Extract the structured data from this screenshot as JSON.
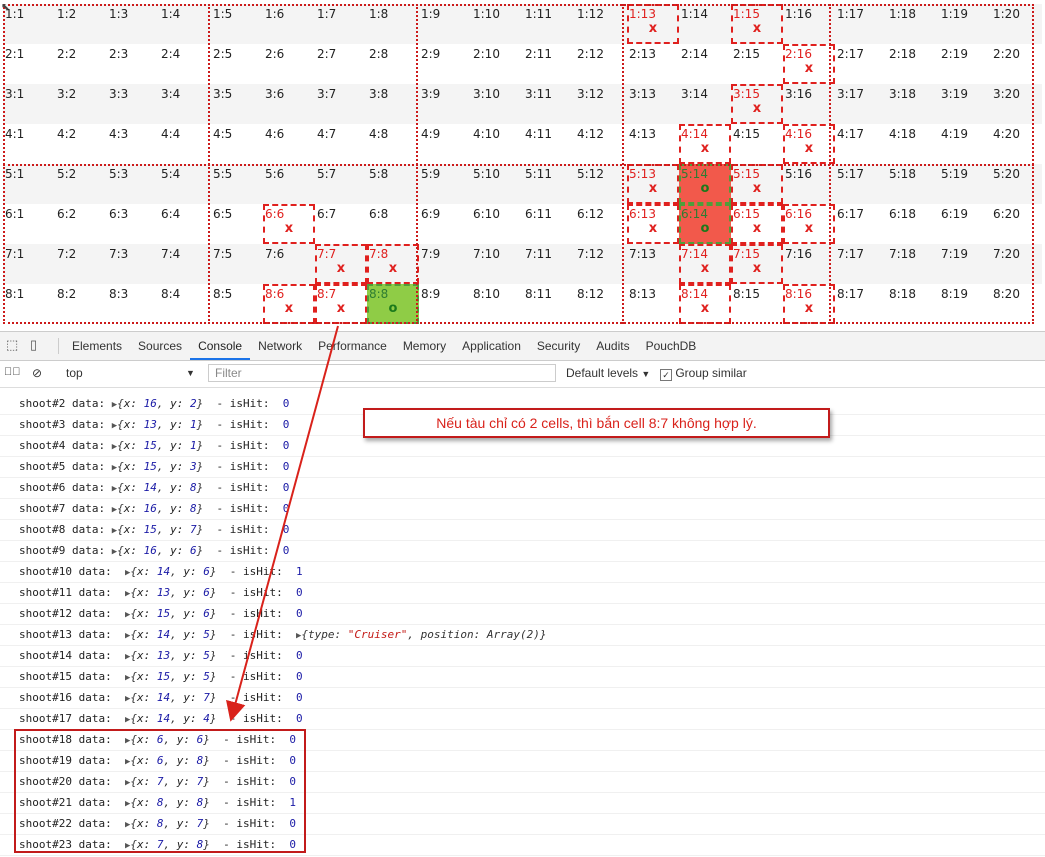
{
  "grid": {
    "rows": [
      [
        {
          "l": "1:1"
        },
        {
          "l": "1:2"
        },
        {
          "l": "1:3"
        },
        {
          "l": "1:4"
        },
        {
          "l": "1:5"
        },
        {
          "l": "1:6"
        },
        {
          "l": "1:7"
        },
        {
          "l": "1:8"
        },
        {
          "l": "1:9"
        },
        {
          "l": "1:10"
        },
        {
          "l": "1:11"
        },
        {
          "l": "1:12"
        },
        {
          "l": "1:13",
          "s": "miss",
          "m": "x"
        },
        {
          "l": "1:14"
        },
        {
          "l": "1:15",
          "s": "miss",
          "m": "x"
        },
        {
          "l": "1:16"
        },
        {
          "l": "1:17"
        },
        {
          "l": "1:18"
        },
        {
          "l": "1:19"
        },
        {
          "l": "1:20"
        }
      ],
      [
        {
          "l": "2:1"
        },
        {
          "l": "2:2"
        },
        {
          "l": "2:3"
        },
        {
          "l": "2:4"
        },
        {
          "l": "2:5"
        },
        {
          "l": "2:6"
        },
        {
          "l": "2:7"
        },
        {
          "l": "2:8"
        },
        {
          "l": "2:9"
        },
        {
          "l": "2:10"
        },
        {
          "l": "2:11"
        },
        {
          "l": "2:12"
        },
        {
          "l": "2:13"
        },
        {
          "l": "2:14"
        },
        {
          "l": "2:15"
        },
        {
          "l": "2:16",
          "s": "miss",
          "m": "x"
        },
        {
          "l": "2:17"
        },
        {
          "l": "2:18"
        },
        {
          "l": "2:19"
        },
        {
          "l": "2:20"
        }
      ],
      [
        {
          "l": "3:1"
        },
        {
          "l": "3:2"
        },
        {
          "l": "3:3"
        },
        {
          "l": "3:4"
        },
        {
          "l": "3:5"
        },
        {
          "l": "3:6"
        },
        {
          "l": "3:7"
        },
        {
          "l": "3:8"
        },
        {
          "l": "3:9"
        },
        {
          "l": "3:10"
        },
        {
          "l": "3:11"
        },
        {
          "l": "3:12"
        },
        {
          "l": "3:13"
        },
        {
          "l": "3:14"
        },
        {
          "l": "3:15",
          "s": "miss",
          "m": "x"
        },
        {
          "l": "3:16"
        },
        {
          "l": "3:17"
        },
        {
          "l": "3:18"
        },
        {
          "l": "3:19"
        },
        {
          "l": "3:20"
        }
      ],
      [
        {
          "l": "4:1"
        },
        {
          "l": "4:2"
        },
        {
          "l": "4:3"
        },
        {
          "l": "4:4"
        },
        {
          "l": "4:5"
        },
        {
          "l": "4:6"
        },
        {
          "l": "4:7"
        },
        {
          "l": "4:8"
        },
        {
          "l": "4:9"
        },
        {
          "l": "4:10"
        },
        {
          "l": "4:11"
        },
        {
          "l": "4:12"
        },
        {
          "l": "4:13"
        },
        {
          "l": "4:14",
          "s": "miss",
          "m": "x"
        },
        {
          "l": "4:15"
        },
        {
          "l": "4:16",
          "s": "miss",
          "m": "x"
        },
        {
          "l": "4:17"
        },
        {
          "l": "4:18"
        },
        {
          "l": "4:19"
        },
        {
          "l": "4:20"
        }
      ],
      [
        {
          "l": "5:1"
        },
        {
          "l": "5:2"
        },
        {
          "l": "5:3"
        },
        {
          "l": "5:4"
        },
        {
          "l": "5:5"
        },
        {
          "l": "5:6"
        },
        {
          "l": "5:7"
        },
        {
          "l": "5:8"
        },
        {
          "l": "5:9"
        },
        {
          "l": "5:10"
        },
        {
          "l": "5:11"
        },
        {
          "l": "5:12"
        },
        {
          "l": "5:13",
          "s": "miss",
          "m": "x"
        },
        {
          "l": "5:14",
          "s": "hit",
          "m": "o"
        },
        {
          "l": "5:15",
          "s": "miss",
          "m": "x"
        },
        {
          "l": "5:16"
        },
        {
          "l": "5:17"
        },
        {
          "l": "5:18"
        },
        {
          "l": "5:19"
        },
        {
          "l": "5:20"
        }
      ],
      [
        {
          "l": "6:1"
        },
        {
          "l": "6:2"
        },
        {
          "l": "6:3"
        },
        {
          "l": "6:4"
        },
        {
          "l": "6:5"
        },
        {
          "l": "6:6",
          "s": "miss",
          "m": "x"
        },
        {
          "l": "6:7"
        },
        {
          "l": "6:8"
        },
        {
          "l": "6:9"
        },
        {
          "l": "6:10"
        },
        {
          "l": "6:11"
        },
        {
          "l": "6:12"
        },
        {
          "l": "6:13",
          "s": "miss",
          "m": "x"
        },
        {
          "l": "6:14",
          "s": "hit",
          "m": "o"
        },
        {
          "l": "6:15",
          "s": "miss",
          "m": "x"
        },
        {
          "l": "6:16",
          "s": "miss",
          "m": "x"
        },
        {
          "l": "6:17"
        },
        {
          "l": "6:18"
        },
        {
          "l": "6:19"
        },
        {
          "l": "6:20"
        }
      ],
      [
        {
          "l": "7:1"
        },
        {
          "l": "7:2"
        },
        {
          "l": "7:3"
        },
        {
          "l": "7:4"
        },
        {
          "l": "7:5"
        },
        {
          "l": "7:6"
        },
        {
          "l": "7:7",
          "s": "miss",
          "m": "x"
        },
        {
          "l": "7:8",
          "s": "miss",
          "m": "x"
        },
        {
          "l": "7:9"
        },
        {
          "l": "7:10"
        },
        {
          "l": "7:11"
        },
        {
          "l": "7:12"
        },
        {
          "l": "7:13"
        },
        {
          "l": "7:14",
          "s": "miss",
          "m": "x"
        },
        {
          "l": "7:15",
          "s": "miss",
          "m": "x"
        },
        {
          "l": "7:16"
        },
        {
          "l": "7:17"
        },
        {
          "l": "7:18"
        },
        {
          "l": "7:19"
        },
        {
          "l": "7:20"
        }
      ],
      [
        {
          "l": "8:1"
        },
        {
          "l": "8:2"
        },
        {
          "l": "8:3"
        },
        {
          "l": "8:4"
        },
        {
          "l": "8:5"
        },
        {
          "l": "8:6",
          "s": "miss",
          "m": "x"
        },
        {
          "l": "8:7",
          "s": "miss",
          "m": "x"
        },
        {
          "l": "8:8",
          "s": "sunk",
          "m": "o"
        },
        {
          "l": "8:9"
        },
        {
          "l": "8:10"
        },
        {
          "l": "8:11"
        },
        {
          "l": "8:12"
        },
        {
          "l": "8:13"
        },
        {
          "l": "8:14",
          "s": "miss",
          "m": "x"
        },
        {
          "l": "8:15"
        },
        {
          "l": "8:16",
          "s": "miss",
          "m": "x"
        },
        {
          "l": "8:17"
        },
        {
          "l": "8:18"
        },
        {
          "l": "8:19"
        },
        {
          "l": "8:20"
        }
      ]
    ]
  },
  "devtools": {
    "tabs": [
      "Elements",
      "Sources",
      "Console",
      "Network",
      "Performance",
      "Memory",
      "Application",
      "Security",
      "Audits",
      "PouchDB"
    ],
    "active_tab": "Console",
    "context": "top",
    "filter_placeholder": "Filter",
    "levels": "Default levels",
    "group_similar": "Group similar"
  },
  "log": [
    {
      "id": "shoot#2",
      "x": 16,
      "y": 2,
      "hit": "0"
    },
    {
      "id": "shoot#3",
      "x": 13,
      "y": 1,
      "hit": "0"
    },
    {
      "id": "shoot#4",
      "x": 15,
      "y": 1,
      "hit": "0"
    },
    {
      "id": "shoot#5",
      "x": 15,
      "y": 3,
      "hit": "0"
    },
    {
      "id": "shoot#6",
      "x": 14,
      "y": 8,
      "hit": "0"
    },
    {
      "id": "shoot#7",
      "x": 16,
      "y": 8,
      "hit": "0"
    },
    {
      "id": "shoot#8",
      "x": 15,
      "y": 7,
      "hit": "0"
    },
    {
      "id": "shoot#9",
      "x": 16,
      "y": 6,
      "hit": "0"
    },
    {
      "id": "shoot#10",
      "x": 14,
      "y": 6,
      "hit": "1"
    },
    {
      "id": "shoot#11",
      "x": 13,
      "y": 6,
      "hit": "0"
    },
    {
      "id": "shoot#12",
      "x": 15,
      "y": 6,
      "hit": "0"
    },
    {
      "id": "shoot#13",
      "x": 14,
      "y": 5,
      "hit": "{type: \"Cruiser\", position: Array(2)}"
    },
    {
      "id": "shoot#14",
      "x": 13,
      "y": 5,
      "hit": "0"
    },
    {
      "id": "shoot#15",
      "x": 15,
      "y": 5,
      "hit": "0"
    },
    {
      "id": "shoot#16",
      "x": 14,
      "y": 7,
      "hit": "0"
    },
    {
      "id": "shoot#17",
      "x": 14,
      "y": 4,
      "hit": "0"
    },
    {
      "id": "shoot#18",
      "x": 6,
      "y": 6,
      "hit": "0"
    },
    {
      "id": "shoot#19",
      "x": 6,
      "y": 8,
      "hit": "0"
    },
    {
      "id": "shoot#20",
      "x": 7,
      "y": 7,
      "hit": "0"
    },
    {
      "id": "shoot#21",
      "x": 8,
      "y": 8,
      "hit": "1"
    },
    {
      "id": "shoot#22",
      "x": 8,
      "y": 7,
      "hit": "0"
    },
    {
      "id": "shoot#23",
      "x": 7,
      "y": 8,
      "hit": "0"
    }
  ],
  "annotation": {
    "text": "Nếu tàu chỉ có 2 cells, thì bắn cell 8:7 không hợp lý."
  },
  "colors": {
    "miss": "#e0201e",
    "hit": "#f2594b",
    "sunk": "#8fcc46",
    "annotation": "#c21b1b"
  }
}
